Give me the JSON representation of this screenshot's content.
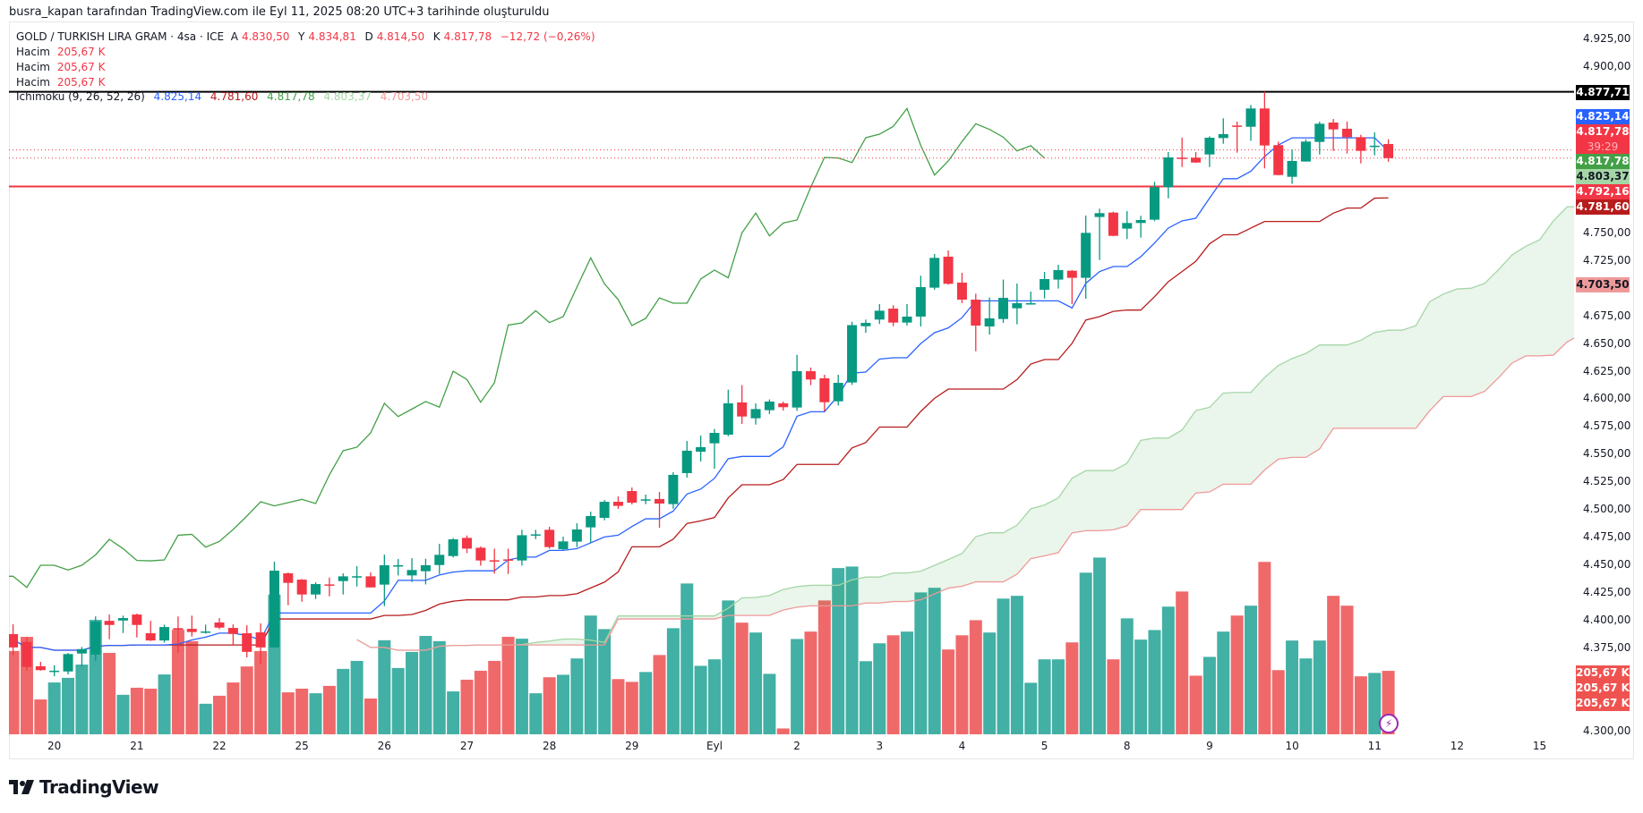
{
  "credit": "busra_kapan tarafından TradingView.com ile Eyl 11, 2025 08:20 UTC+3 tarihinde oluşturuldu",
  "legend": {
    "symbol": "GOLD / TURKISH LIRA GRAM · 4sa · ICE",
    "o_label": "A",
    "o": "4.830,50",
    "h_label": "Y",
    "h": "4.834,81",
    "l_label": "D",
    "l": "4.814,50",
    "c_label": "K",
    "c": "4.817,78",
    "change": "−12,72 (−0,26%)",
    "volume_rows": [
      {
        "label": "Hacim",
        "value": "205,67 K"
      },
      {
        "label": "Hacim",
        "value": "205,67 K"
      },
      {
        "label": "Hacim",
        "value": "205,67 K"
      }
    ],
    "ichimoku": {
      "name": "Ichimoku (9, 26, 52, 26)",
      "conversion": "4.825,14",
      "base": "4.781,60",
      "lagging": "4.817,78",
      "lead_a": "4.803,37",
      "lead_b": "4.703,50"
    }
  },
  "colors": {
    "up": "#089981",
    "down": "#F23645",
    "vol_up": "#42b0a4",
    "vol_down": "#f0696a",
    "conversion": "#2962FF",
    "base": "#B71C1C",
    "lagging": "#43A047",
    "lead_a": "#A5D6A7",
    "lead_b": "#EF9A9A",
    "hline_black": "#000000",
    "hline_red": "#F23645"
  },
  "price_axis": {
    "ticks": [
      "4.925,00",
      "4.900,00",
      "4.750,00",
      "4.725,00",
      "4.675,00",
      "4.650,00",
      "4.625,00",
      "4.600,00",
      "4.575,00",
      "4.550,00",
      "4.525,00",
      "4.500,00",
      "4.475,00",
      "4.450,00",
      "4.425,00",
      "4.400,00",
      "4.375,00",
      "4.300,00"
    ],
    "badges": [
      {
        "text": "4.877,71",
        "bg": "#000000",
        "fg": "#ffffff"
      },
      {
        "text": "4.825,14",
        "bg": "#2962FF",
        "fg": "#ffffff"
      },
      {
        "text": "4.817,78",
        "sub": "39:29",
        "bg": "#F23645",
        "fg": "#ffffff"
      },
      {
        "text": "4.817,78",
        "bg": "#43A047",
        "fg": "#ffffff"
      },
      {
        "text": "4.803,37",
        "bg": "#A5D6A7",
        "fg": "#131722"
      },
      {
        "text": "4.792,16",
        "bg": "#F23645",
        "fg": "#ffffff"
      },
      {
        "text": "4.781,60",
        "bg": "#B71C1C",
        "fg": "#ffffff"
      },
      {
        "text": "4.703,50",
        "bg": "#EF9A9A",
        "fg": "#131722"
      }
    ],
    "volume_badges": [
      "205,67 K",
      "205,67 K",
      "205,67 K"
    ]
  },
  "time_axis": [
    "20",
    "21",
    "22",
    "25",
    "26",
    "27",
    "28",
    "29",
    "Eyl",
    "2",
    "3",
    "4",
    "5",
    "8",
    "9",
    "10",
    "11",
    "12",
    "15"
  ],
  "chart_data": {
    "type": "candlestick",
    "title": "GOLD / TURKISH LIRA GRAM · 4sa · ICE",
    "ylim": [
      4300,
      4925
    ],
    "horizontal_lines": [
      4877.71,
      4792.16
    ],
    "price_lines_dotted": [
      4825.14,
      4817.78
    ],
    "ichimoku_params": [
      9,
      26,
      52,
      26
    ],
    "ohlc": [
      [
        4388,
        4397,
        4369,
        4376
      ],
      [
        4381,
        4385.5,
        4355,
        4358.4
      ],
      [
        4359,
        4363,
        4355,
        4355.5
      ],
      [
        4354,
        4360,
        4350,
        4355
      ],
      [
        4354.3,
        4371,
        4351.6,
        4370
      ],
      [
        4370.5,
        4376.4,
        4359,
        4374.5
      ],
      [
        4369.6,
        4404,
        4364,
        4399.3
      ],
      [
        4400,
        4405.7,
        4383.4,
        4396.3
      ],
      [
        4400.3,
        4404.7,
        4389,
        4402.5
      ],
      [
        4405.7,
        4406.5,
        4385,
        4396.3
      ],
      [
        4388.8,
        4400,
        4381.8,
        4382.3
      ],
      [
        4382.3,
        4396.6,
        4380.4,
        4394.4
      ],
      [
        4393.4,
        4404,
        4371.3,
        4392
      ],
      [
        4392.8,
        4404.7,
        4385.8,
        4389.9
      ],
      [
        4389.8,
        4396.6,
        4388.5,
        4390.4
      ],
      [
        4398.5,
        4402.5,
        4392.6,
        4393.9
      ],
      [
        4393.6,
        4396.8,
        4378.5,
        4388.2
      ],
      [
        4388.8,
        4396,
        4367,
        4372
      ],
      [
        4389.6,
        4397.7,
        4360.8,
        4376
      ],
      [
        4376,
        4453.4,
        4376,
        4445.3
      ],
      [
        4442.9,
        4443.7,
        4414.1,
        4434.3
      ],
      [
        4437.2,
        4437.8,
        4417.3,
        4423.8
      ],
      [
        4423.8,
        4434.8,
        4419.7,
        4433.2
      ],
      [
        4432.9,
        4439.1,
        4422.2,
        4432.7
      ],
      [
        4435.9,
        4442.9,
        4423.8,
        4440.2
      ],
      [
        4440,
        4449.3,
        4431,
        4440.3
      ],
      [
        4440.2,
        4443.7,
        4430.2,
        4430.2
      ],
      [
        4432.7,
        4459.8,
        4413.3,
        4450.2
      ],
      [
        4450,
        4455.8,
        4441,
        4450.2
      ],
      [
        4441,
        4456.6,
        4435.1,
        4445.9
      ],
      [
        4444.8,
        4456.1,
        4432.9,
        4450.2
      ],
      [
        4450.4,
        4469.5,
        4442.3,
        4459.6
      ],
      [
        4458.5,
        4474.7,
        4457.2,
        4473.6
      ],
      [
        4474.9,
        4477.1,
        4461.2,
        4465.2
      ],
      [
        4466,
        4467.1,
        4449.9,
        4454.5
      ],
      [
        4454.7,
        4465.2,
        4442.6,
        4454.2
      ],
      [
        4455.5,
        4465.2,
        4442.3,
        4455
      ],
      [
        4454.5,
        4482.2,
        4449.9,
        4477.3
      ],
      [
        4478,
        4482.2,
        4473.8,
        4478.1
      ],
      [
        4482.2,
        4484.9,
        4465.2,
        4466.6
      ],
      [
        4464.7,
        4476,
        4463.9,
        4471.7
      ],
      [
        4471.5,
        4488.1,
        4466.6,
        4482.5
      ],
      [
        4484.4,
        4498.6,
        4470.6,
        4494.6
      ],
      [
        4493,
        4509.1,
        4490.8,
        4507.5
      ],
      [
        4507.5,
        4512.4,
        4501.1,
        4503.8
      ],
      [
        4517.2,
        4520.4,
        4505.1,
        4506.7
      ],
      [
        4509.5,
        4514,
        4505.4,
        4509.7
      ],
      [
        4510,
        4516.4,
        4484.1,
        4505.9
      ],
      [
        4505.4,
        4534.2,
        4501.3,
        4531.8
      ],
      [
        4533.4,
        4562.4,
        4529.3,
        4553.6
      ],
      [
        4552.7,
        4567.3,
        4543.9,
        4556.8
      ],
      [
        4560.3,
        4573.2,
        4537.4,
        4569.7
      ],
      [
        4568.1,
        4608.7,
        4566.7,
        4596.4
      ],
      [
        4597.2,
        4612.8,
        4577.8,
        4584.5
      ],
      [
        4582.9,
        4596.4,
        4577.2,
        4591.2
      ],
      [
        4590.2,
        4599.9,
        4586.7,
        4598
      ],
      [
        4596.4,
        4598,
        4589.9,
        4592.9
      ],
      [
        4592.6,
        4640.2,
        4589.6,
        4625.4
      ],
      [
        4625.4,
        4628.7,
        4612.8,
        4617.9
      ],
      [
        4619,
        4622.2,
        4589.1,
        4597.4
      ],
      [
        4598.2,
        4622.2,
        4594.5,
        4614.9
      ],
      [
        4615.2,
        4670,
        4613,
        4667
      ],
      [
        4666,
        4672,
        4660,
        4669
      ],
      [
        4672,
        4686,
        4668,
        4680
      ],
      [
        4681.9,
        4685,
        4666,
        4669.3
      ],
      [
        4669.3,
        4686,
        4666.6,
        4674.7
      ],
      [
        4674.7,
        4711.6,
        4665.8,
        4701.3
      ],
      [
        4700.8,
        4731.2,
        4698.9,
        4727.7
      ],
      [
        4728.8,
        4734.4,
        4703.5,
        4704.3
      ],
      [
        4705.4,
        4714.2,
        4686.8,
        4690
      ],
      [
        4690,
        4695.4,
        4643.4,
        4666.6
      ],
      [
        4665.8,
        4691.9,
        4658.5,
        4673.1
      ],
      [
        4672.5,
        4708.1,
        4669,
        4691.6
      ],
      [
        4682.2,
        4704.5,
        4667.7,
        4686.8
      ],
      [
        4686.2,
        4697.3,
        4685.5,
        4686.8
      ],
      [
        4698.9,
        4715,
        4691.1,
        4708.6
      ],
      [
        4708.1,
        4721.5,
        4700,
        4716.7
      ],
      [
        4716.1,
        4716.7,
        4686,
        4709.7
      ],
      [
        4709.7,
        4766,
        4690.8,
        4750.3
      ],
      [
        4764.6,
        4772.1,
        4725.8,
        4768.1
      ],
      [
        4768.6,
        4769.4,
        4747.3,
        4747.6
      ],
      [
        4754.1,
        4770,
        4744.7,
        4759.2
      ],
      [
        4759.2,
        4765.7,
        4746,
        4761.9
      ],
      [
        4762.2,
        4796.3,
        4760.8,
        4791.5
      ],
      [
        4791.5,
        4823.3,
        4781.5,
        4818.4
      ],
      [
        4818.2,
        4836.2,
        4809.8,
        4817.9
      ],
      [
        4818.2,
        4823.3,
        4813.5,
        4813.8
      ],
      [
        4821.1,
        4837.5,
        4809.8,
        4836.2
      ],
      [
        4835.9,
        4853.7,
        4830.8,
        4839.4
      ],
      [
        4847.2,
        4850.7,
        4822.7,
        4846.4
      ],
      [
        4846.1,
        4865.8,
        4833.5,
        4862.6
      ],
      [
        4862.6,
        4877.71,
        4808.5,
        4829.2
      ],
      [
        4829.5,
        4832.7,
        4802.2,
        4802.5
      ],
      [
        4800.9,
        4825.4,
        4794.5,
        4815.2
      ],
      [
        4814.7,
        4834.8,
        4814.5,
        4832.7
      ],
      [
        4832.4,
        4850.7,
        4821.1,
        4848.8
      ],
      [
        4849.9,
        4853.1,
        4824.3,
        4843.7
      ],
      [
        4844.3,
        4850.7,
        4821.9,
        4836.7
      ],
      [
        4836.7,
        4838.9,
        4813,
        4824.3
      ],
      [
        4828.7,
        4841,
        4820.3,
        4829
      ],
      [
        4830.5,
        4834.81,
        4814.5,
        4817.78
      ]
    ],
    "volume_k": [
      270,
      316,
      113,
      168,
      183,
      226,
      371,
      264,
      128,
      151,
      148,
      194,
      339,
      302,
      99,
      125,
      168,
      220,
      270,
      453,
      136,
      148,
      133,
      157,
      212,
      238,
      116,
      305,
      215,
      267,
      319,
      302,
      139,
      177,
      206,
      238,
      316,
      310,
      133,
      185,
      193,
      246,
      385,
      341,
      179,
      170,
      202,
      257,
      344,
      489,
      222,
      243,
      434,
      362,
      330,
      196,
      19,
      309,
      333,
      434,
      539,
      544,
      237,
      295,
      321,
      333,
      460,
      475,
      275,
      321,
      370,
      330,
      440,
      449,
      167,
      243,
      243,
      298,
      524,
      573,
      243,
      376,
      307,
      338,
      414,
      463,
      190,
      251,
      333,
      385,
      417,
      559,
      208,
      304,
      246,
      304,
      449,
      417,
      188,
      199,
      205.67
    ]
  },
  "logo_text": "TradingView"
}
